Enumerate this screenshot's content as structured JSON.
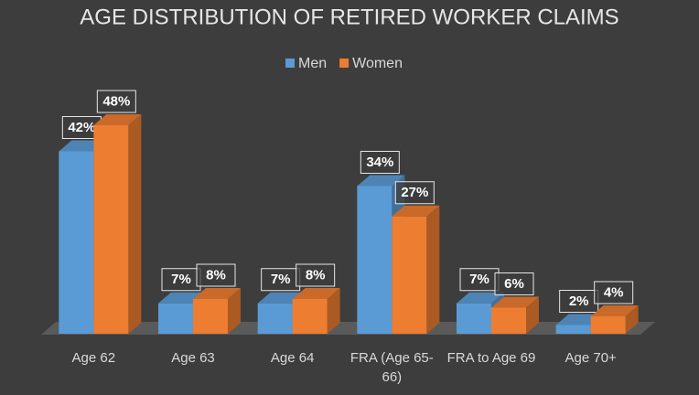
{
  "chart_data": {
    "type": "bar3d",
    "title": "AGE DISTRIBUTION OF RETIRED WORKER CLAIMS",
    "categories": [
      "Age 62",
      "Age 63",
      "Age 64",
      "FRA (Age 65-66)",
      "FRA to Age 69",
      "Age 70+"
    ],
    "series": [
      {
        "name": "Men",
        "color": "#5b9bd5",
        "values": [
          42,
          7,
          7,
          34,
          7,
          2
        ],
        "value_labels": [
          "42%",
          "7%",
          "7%",
          "34%",
          "7%",
          "2%"
        ]
      },
      {
        "name": "Women",
        "color": "#ed7d31",
        "values": [
          48,
          8,
          8,
          27,
          6,
          4
        ],
        "value_labels": [
          "48%",
          "8%",
          "8%",
          "27%",
          "6%",
          "4%"
        ]
      }
    ],
    "legend": "top",
    "grid": false
  }
}
